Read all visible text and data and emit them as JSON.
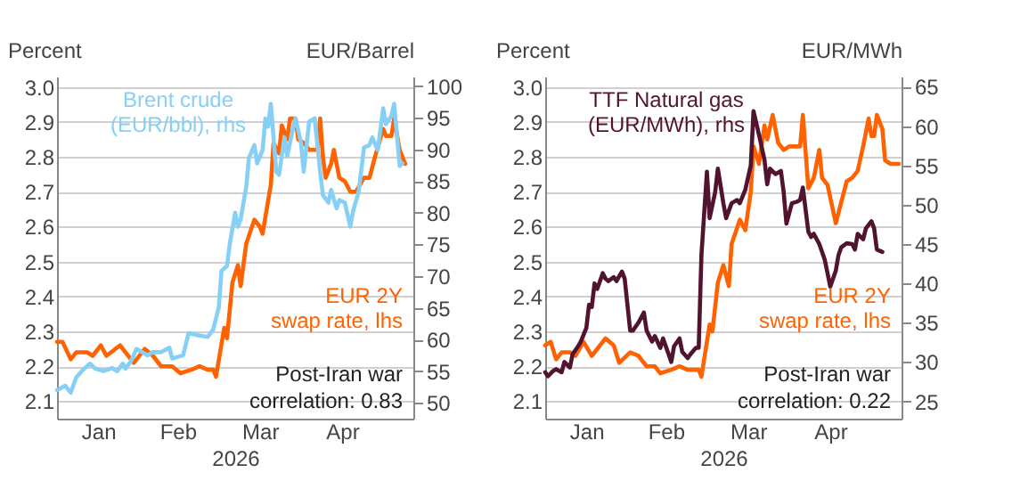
{
  "chart_data": [
    {
      "type": "line",
      "xlabel": "2026",
      "ylabel": "Percent",
      "y2label": "EUR/Barrel",
      "grid": "y",
      "xlim": [
        "2026-01-01",
        "2026-05-11"
      ],
      "xticks": [
        {
          "value": "2026-01-16",
          "label": "Jan"
        },
        {
          "value": "2026-02-14",
          "label": "Feb"
        },
        {
          "value": "2026-03-16",
          "label": "Mar"
        },
        {
          "value": "2026-04-15",
          "label": "Apr"
        }
      ],
      "ylim": [
        2.05,
        3.03
      ],
      "yticks": [
        2.1,
        2.2,
        2.3,
        2.4,
        2.5,
        2.6,
        2.7,
        2.8,
        2.9,
        {
          "value": 3,
          "label": "3.0"
        }
      ],
      "y2lim": [
        47.5,
        101.5
      ],
      "y2ticks": [
        50,
        55,
        60,
        65,
        70,
        75,
        80,
        85,
        90,
        95,
        100
      ],
      "annotations": [
        "Post-Iran war\ncorrelation: 0.83"
      ],
      "series": [
        {
          "name": "Brent crude\n(EUR/bbl), rhs",
          "color": "#86cff5",
          "axis": "y2",
          "x": [
            "2026-01-01",
            "2026-01-04",
            "2026-01-06",
            "2026-01-08",
            "2026-01-10",
            "2026-01-13",
            "2026-01-15",
            "2026-01-18",
            "2026-01-21",
            "2026-01-23",
            "2026-01-25",
            "2026-01-26",
            "2026-01-28",
            "2026-01-30",
            "2026-02-01",
            "2026-02-03",
            "2026-02-05",
            "2026-02-08",
            "2026-02-11",
            "2026-02-12",
            "2026-02-16",
            "2026-02-18",
            "2026-02-21",
            "2026-02-25",
            "2026-02-27",
            "2026-03-01",
            "2026-03-02",
            "2026-03-04",
            "2026-03-05",
            "2026-03-07",
            "2026-03-08",
            "2026-03-09",
            "2026-03-11",
            "2026-03-12",
            "2026-03-14",
            "2026-03-15",
            "2026-03-17",
            "2026-03-18",
            "2026-03-19",
            "2026-03-20",
            "2026-03-22",
            "2026-03-23",
            "2026-03-25",
            "2026-03-26",
            "2026-03-28",
            "2026-03-29",
            "2026-03-31",
            "2026-04-01",
            "2026-04-03",
            "2026-04-05",
            "2026-04-07",
            "2026-04-08",
            "2026-04-10",
            "2026-04-11",
            "2026-04-13",
            "2026-04-14",
            "2026-04-16",
            "2026-04-18",
            "2026-04-19",
            "2026-04-21",
            "2026-04-23",
            "2026-04-25",
            "2026-04-26",
            "2026-04-28",
            "2026-04-30",
            "2026-05-01",
            "2026-05-03",
            "2026-05-04",
            "2026-05-06",
            "2026-05-07"
          ],
          "values": [
            52,
            52.7,
            51.6,
            54,
            55,
            56.2,
            55.4,
            55,
            55.5,
            55,
            56.2,
            55.4,
            56.6,
            58.5,
            58,
            57.5,
            58,
            58,
            58.7,
            57,
            57.5,
            61,
            60.7,
            60.4,
            61.6,
            65,
            70.8,
            71.6,
            75,
            80,
            77.8,
            79,
            84,
            88.6,
            90.7,
            87.8,
            89.9,
            94.9,
            93.6,
            97.2,
            86.5,
            86,
            91.9,
            89,
            93.2,
            94.9,
            91.1,
            86.5,
            94.4,
            94.9,
            86.5,
            82.8,
            81.6,
            83.6,
            80.7,
            82,
            81.6,
            77.8,
            80.3,
            83.2,
            90.3,
            90.7,
            91.9,
            89.9,
            96.5,
            94,
            95.3,
            97.2,
            87.4,
            87.8
          ]
        },
        {
          "name": "EUR 2Y\nswap rate, lhs",
          "color": "#ff6200",
          "axis": "y",
          "x": [
            "2026-01-01",
            "2026-01-03",
            "2026-01-06",
            "2026-01-08",
            "2026-01-12",
            "2026-01-14",
            "2026-01-17",
            "2026-01-19",
            "2026-01-24",
            "2026-01-26",
            "2026-01-29",
            "2026-02-02",
            "2026-02-05",
            "2026-02-08",
            "2026-02-12",
            "2026-02-15",
            "2026-02-19",
            "2026-02-22",
            "2026-02-25",
            "2026-02-27",
            "2026-02-28",
            "2026-03-03",
            "2026-03-04",
            "2026-03-06",
            "2026-03-08",
            "2026-03-09",
            "2026-03-11",
            "2026-03-14",
            "2026-03-16",
            "2026-03-17",
            "2026-03-20",
            "2026-03-21",
            "2026-03-23",
            "2026-03-24",
            "2026-03-26",
            "2026-03-27",
            "2026-03-29",
            "2026-03-30",
            "2026-04-01",
            "2026-04-03",
            "2026-04-06",
            "2026-04-07",
            "2026-04-08",
            "2026-04-09",
            "2026-04-11",
            "2026-04-12",
            "2026-04-14",
            "2026-04-16",
            "2026-04-18",
            "2026-04-20",
            "2026-04-23",
            "2026-04-25",
            "2026-04-27",
            "2026-04-30",
            "2026-05-01",
            "2026-05-03",
            "2026-05-04",
            "2026-05-06",
            "2026-05-08"
          ],
          "values": [
            2.27,
            2.27,
            2.22,
            2.24,
            2.24,
            2.23,
            2.26,
            2.23,
            2.26,
            2.24,
            2.21,
            2.25,
            2.23,
            2.2,
            2.2,
            2.18,
            2.19,
            2.2,
            2.19,
            2.19,
            2.17,
            2.31,
            2.28,
            2.44,
            2.49,
            2.43,
            2.55,
            2.62,
            2.6,
            2.58,
            2.72,
            2.84,
            2.81,
            2.89,
            2.85,
            2.91,
            2.91,
            2.85,
            2.84,
            2.82,
            2.82,
            2.91,
            2.8,
            2.74,
            2.78,
            2.82,
            2.74,
            2.73,
            2.7,
            2.7,
            2.74,
            2.74,
            2.8,
            2.88,
            2.86,
            2.86,
            2.91,
            2.82,
            2.78
          ]
        }
      ]
    },
    {
      "type": "line",
      "xlabel": "2026",
      "ylabel": "Percent",
      "y2label": "EUR/MWh",
      "grid": "y",
      "xlim": [
        "2026-01-01",
        "2026-05-11"
      ],
      "xticks": [
        {
          "value": "2026-01-16",
          "label": "Jan"
        },
        {
          "value": "2026-02-14",
          "label": "Feb"
        },
        {
          "value": "2026-03-16",
          "label": "Mar"
        },
        {
          "value": "2026-04-15",
          "label": "Apr"
        }
      ],
      "ylim": [
        2.05,
        3.03
      ],
      "yticks": [
        2.1,
        2.2,
        2.3,
        2.4,
        2.5,
        2.6,
        2.7,
        2.8,
        2.9,
        {
          "value": 3,
          "label": "3.0"
        }
      ],
      "y2lim": [
        22.8,
        66.3
      ],
      "y2ticks": [
        25,
        30,
        35,
        40,
        45,
        50,
        55,
        60,
        65
      ],
      "annotations": [
        "Post-Iran war\ncorrelation: 0.22"
      ],
      "series": [
        {
          "name": "TTF Natural gas\n(EUR/MWh), rhs",
          "color": "#52132f",
          "axis": "y2",
          "x": [
            "2026-01-01",
            "2026-01-02",
            "2026-01-04",
            "2026-01-05",
            "2026-01-07",
            "2026-01-08",
            "2026-01-10",
            "2026-01-11",
            "2026-01-13",
            "2026-01-14",
            "2026-01-16",
            "2026-01-17",
            "2026-01-18",
            "2026-01-19",
            "2026-01-20",
            "2026-01-22",
            "2026-01-23",
            "2026-01-24",
            "2026-01-26",
            "2026-01-27",
            "2026-01-29",
            "2026-01-30",
            "2026-02-01",
            "2026-02-02",
            "2026-02-04",
            "2026-02-06",
            "2026-02-07",
            "2026-02-09",
            "2026-02-10",
            "2026-02-12",
            "2026-02-13",
            "2026-02-15",
            "2026-02-16",
            "2026-02-17",
            "2026-02-19",
            "2026-02-20",
            "2026-02-22",
            "2026-02-23",
            "2026-02-25",
            "2026-02-26",
            "2026-02-27",
            "2026-03-01",
            "2026-03-02",
            "2026-03-04",
            "2026-03-05",
            "2026-03-07",
            "2026-03-08",
            "2026-03-10",
            "2026-03-12",
            "2026-03-13",
            "2026-03-15",
            "2026-03-17",
            "2026-03-18",
            "2026-03-20",
            "2026-03-22",
            "2026-03-23",
            "2026-03-24",
            "2026-03-26",
            "2026-03-28",
            "2026-03-29",
            "2026-03-30",
            "2026-04-01",
            "2026-04-03",
            "2026-04-04",
            "2026-04-05",
            "2026-04-07",
            "2026-04-08",
            "2026-04-09",
            "2026-04-11",
            "2026-04-12",
            "2026-04-13",
            "2026-04-15",
            "2026-04-17",
            "2026-04-18",
            "2026-04-19",
            "2026-04-21",
            "2026-04-23",
            "2026-04-24",
            "2026-04-25",
            "2026-04-27",
            "2026-04-28",
            "2026-04-30",
            "2026-05-01",
            "2026-05-02",
            "2026-05-04"
          ],
          "values": [
            28.7,
            28.2,
            28.9,
            29.1,
            28.7,
            30,
            29.3,
            31,
            32,
            32.6,
            34.3,
            37.3,
            37,
            40,
            39.3,
            41.3,
            40.6,
            40.3,
            40.8,
            40.3,
            41.5,
            40.6,
            34,
            34,
            35,
            36.3,
            34,
            32.6,
            33.3,
            31.8,
            33,
            31,
            30,
            32,
            33,
            31.3,
            30.5,
            31,
            31.8,
            31.8,
            43.6,
            54.2,
            48.3,
            51.6,
            54.6,
            50.2,
            48.3,
            50.2,
            50.6,
            50.2,
            51.9,
            55,
            61.9,
            58.9,
            55.7,
            52.6,
            54.6,
            53.9,
            54.3,
            51.6,
            47.6,
            50.2,
            50.4,
            50.6,
            52.2,
            46.6,
            45.9,
            46.3,
            45,
            44,
            43,
            39.6,
            41.6,
            43.6,
            44.6,
            45.1,
            45,
            44.3,
            46.3,
            45.6,
            47,
            47.9,
            47,
            44.3,
            44
          ]
        },
        {
          "name": "EUR 2Y\nswap rate, lhs",
          "color": "#ff6200",
          "axis": "y",
          "x": [
            "2026-01-01",
            "2026-01-03",
            "2026-01-05",
            "2026-01-07",
            "2026-01-10",
            "2026-01-12",
            "2026-01-15",
            "2026-01-18",
            "2026-01-23",
            "2026-01-26",
            "2026-01-28",
            "2026-02-01",
            "2026-02-04",
            "2026-02-07",
            "2026-02-10",
            "2026-02-12",
            "2026-02-16",
            "2026-02-19",
            "2026-02-22",
            "2026-02-26",
            "2026-02-27",
            "2026-03-02",
            "2026-03-03",
            "2026-03-05",
            "2026-03-07",
            "2026-03-09",
            "2026-03-10",
            "2026-03-13",
            "2026-03-15",
            "2026-03-17",
            "2026-03-18",
            "2026-03-20",
            "2026-03-22",
            "2026-03-23",
            "2026-03-25",
            "2026-03-27",
            "2026-03-29",
            "2026-03-31",
            "2026-04-04",
            "2026-04-05",
            "2026-04-07",
            "2026-04-09",
            "2026-04-11",
            "2026-04-12",
            "2026-04-14",
            "2026-04-17",
            "2026-04-19",
            "2026-04-21",
            "2026-04-23",
            "2026-04-25",
            "2026-04-27",
            "2026-04-29",
            "2026-04-30",
            "2026-05-01",
            "2026-05-02",
            "2026-05-04",
            "2026-05-05",
            "2026-05-07",
            "2026-05-10"
          ],
          "values": [
            2.26,
            2.27,
            2.22,
            2.24,
            2.24,
            2.23,
            2.27,
            2.23,
            2.28,
            2.26,
            2.21,
            2.24,
            2.23,
            2.2,
            2.2,
            2.18,
            2.19,
            2.2,
            2.19,
            2.19,
            2.17,
            2.32,
            2.3,
            2.44,
            2.49,
            2.43,
            2.55,
            2.62,
            2.59,
            2.7,
            2.83,
            2.78,
            2.89,
            2.85,
            2.92,
            2.84,
            2.82,
            2.83,
            2.83,
            2.92,
            2.71,
            2.74,
            2.82,
            2.74,
            2.72,
            2.61,
            2.67,
            2.73,
            2.74,
            2.76,
            2.83,
            2.91,
            2.86,
            2.86,
            2.92,
            2.88,
            2.79,
            2.78,
            2.78
          ]
        }
      ]
    }
  ]
}
